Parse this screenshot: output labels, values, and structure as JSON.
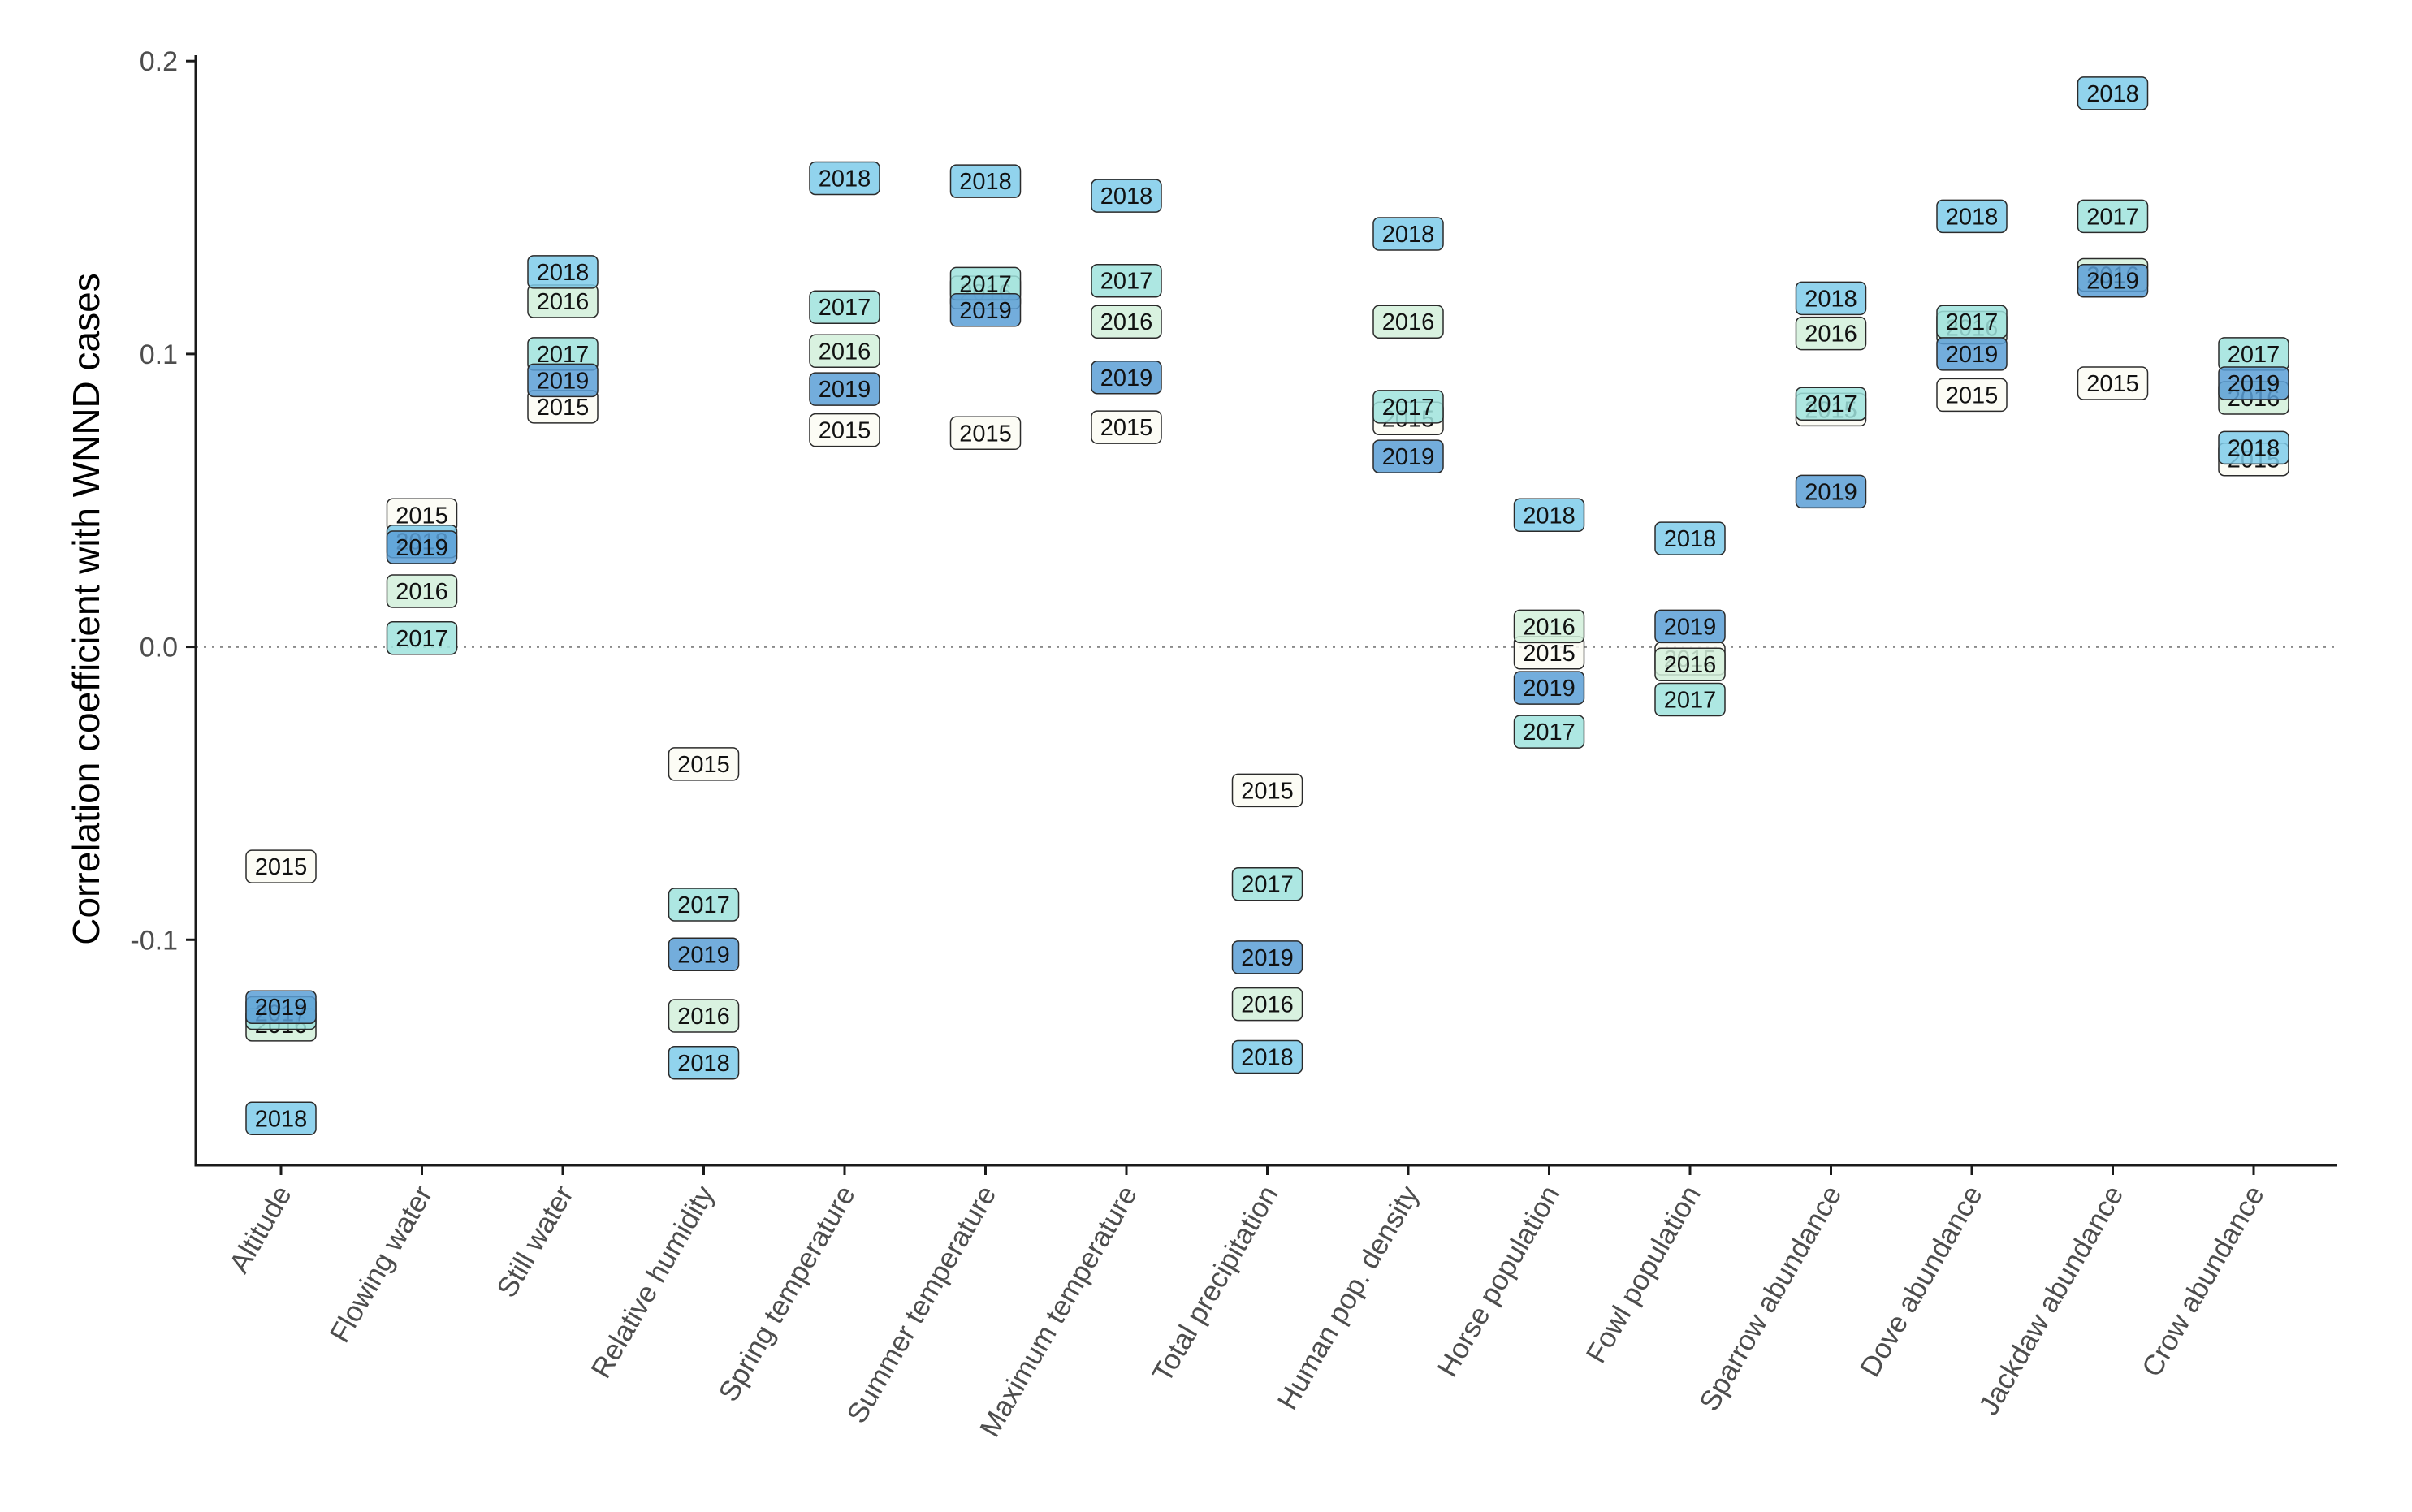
{
  "chart_data": {
    "type": "scatter",
    "ylabel": "Correlation coefficient with WNND cases",
    "xlabel": "",
    "ylim": [
      -0.177,
      0.202
    ],
    "yticks": [
      {
        "value": 0.2,
        "label": "0.2"
      },
      {
        "value": 0.1,
        "label": "0.1"
      },
      {
        "value": 0.0,
        "label": "0.0"
      },
      {
        "value": -0.1,
        "label": "-0.1"
      }
    ],
    "reference_line": {
      "value": 0.0,
      "style": "dotted"
    },
    "categories": [
      "Altitude",
      "Flowing water",
      "Still water",
      "Relative humidity",
      "Spring temperature",
      "Summer temperature",
      "Maximum temperature",
      "Total precipitation",
      "Human pop. density",
      "Horse population",
      "Fowl population",
      "Sparrow abundance",
      "Dove abundance",
      "Jackdaw abundance",
      "Crow abundance"
    ],
    "series": [
      {
        "name": "2015",
        "color": "#fbfcf3",
        "labels": [
          "2015",
          "2015",
          "2015",
          "2015",
          "2015",
          "2015",
          "2015",
          "2015",
          "2015",
          "2015",
          "2015",
          "2015",
          "2015",
          "2015",
          "2015"
        ],
        "values": [
          -0.075,
          0.045,
          0.082,
          -0.04,
          0.074,
          0.073,
          0.075,
          -0.049,
          0.078,
          -0.002,
          -0.004,
          0.081,
          0.086,
          0.09,
          0.064
        ]
      },
      {
        "name": "2016",
        "color": "#d2f0da",
        "labels": [
          "2016",
          "2016",
          "2016",
          "2016",
          "2016",
          "2016",
          "2016",
          "2016",
          "2016",
          "2016",
          "2016",
          "2016",
          "2016",
          "2016",
          "2016"
        ],
        "values": [
          -0.129,
          0.019,
          0.118,
          -0.126,
          0.101,
          0.121,
          0.111,
          -0.122,
          0.111,
          0.007,
          -0.006,
          0.107,
          0.109,
          0.127,
          0.085
        ]
      },
      {
        "name": "2017",
        "color": "#9fe3dd",
        "labels": [
          "2017",
          "2017",
          "2017",
          "2017",
          "2017",
          "2017",
          "2017",
          "2017",
          "2017",
          "2017",
          "2017",
          "2017",
          "2017",
          "2017",
          "2017"
        ],
        "values": [
          -0.125,
          0.003,
          0.1,
          -0.088,
          0.116,
          0.124,
          0.125,
          -0.081,
          0.082,
          -0.029,
          -0.018,
          0.083,
          0.111,
          0.147,
          0.1
        ]
      },
      {
        "name": "2018",
        "color": "#7ecbea",
        "labels": [
          "2018",
          "2018",
          "2018",
          "2018",
          "2018",
          "2018",
          "2018",
          "2018",
          "2018",
          "2018",
          "2018",
          "2018",
          "2018",
          "2018",
          "2018"
        ],
        "values": [
          -0.161,
          0.036,
          0.128,
          -0.142,
          0.16,
          0.159,
          0.154,
          -0.14,
          0.141,
          0.045,
          0.037,
          0.119,
          0.147,
          0.189,
          0.068
        ]
      },
      {
        "name": "2019",
        "color": "#5b9fd6",
        "labels": [
          "2019",
          "2019",
          "2019",
          "2019",
          "2019",
          "2019",
          "2019",
          "2019",
          "2019",
          "2019",
          "2019",
          "2019",
          "2019",
          "2019",
          "2019"
        ],
        "values": [
          -0.123,
          0.034,
          0.091,
          -0.105,
          0.088,
          0.115,
          0.092,
          -0.106,
          0.065,
          -0.014,
          0.007,
          0.053,
          0.1,
          0.125,
          0.09
        ]
      }
    ]
  }
}
